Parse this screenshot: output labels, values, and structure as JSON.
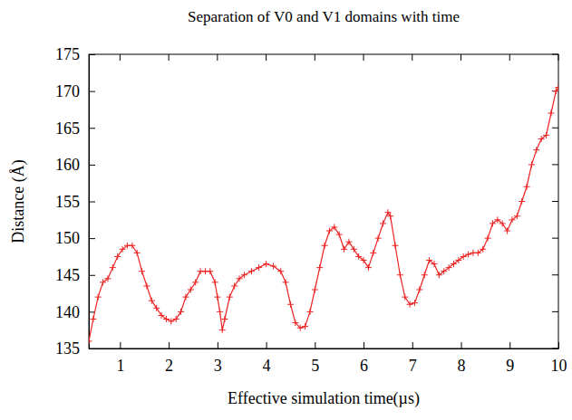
{
  "chart_data": {
    "type": "line",
    "title": "Separation of V0 and V1 domains with time",
    "x_label": "Effective simulation time(µs)",
    "y_label": "Distance (Å)",
    "xlim": [
      0.36,
      10
    ],
    "ylim": [
      135,
      175
    ],
    "xticks": [
      1,
      2,
      3,
      4,
      5,
      6,
      7,
      8,
      9,
      10
    ],
    "yticks": [
      135,
      140,
      145,
      150,
      155,
      160,
      165,
      170,
      175
    ],
    "grid": false,
    "series": [
      {
        "name": "distance",
        "color": "#ee2222",
        "marker": "plus",
        "line_style": "solid",
        "x": [
          0.36,
          0.45,
          0.55,
          0.65,
          0.75,
          0.85,
          0.95,
          1.05,
          1.15,
          1.25,
          1.35,
          1.45,
          1.55,
          1.65,
          1.75,
          1.85,
          1.95,
          2.05,
          2.15,
          2.25,
          2.35,
          2.45,
          2.55,
          2.65,
          2.75,
          2.85,
          2.95,
          3.0,
          3.05,
          3.1,
          3.15,
          3.25,
          3.35,
          3.45,
          3.55,
          3.7,
          3.85,
          4.0,
          4.15,
          4.3,
          4.4,
          4.5,
          4.6,
          4.7,
          4.8,
          4.9,
          5.0,
          5.1,
          5.2,
          5.3,
          5.4,
          5.5,
          5.6,
          5.7,
          5.8,
          5.9,
          6.0,
          6.1,
          6.2,
          6.3,
          6.4,
          6.5,
          6.55,
          6.65,
          6.75,
          6.85,
          6.95,
          7.05,
          7.15,
          7.25,
          7.35,
          7.45,
          7.55,
          7.65,
          7.75,
          7.85,
          7.95,
          8.05,
          8.15,
          8.25,
          8.35,
          8.45,
          8.55,
          8.65,
          8.75,
          8.85,
          8.95,
          9.05,
          9.15,
          9.25,
          9.35,
          9.45,
          9.55,
          9.65,
          9.75,
          9.85,
          9.95,
          10.0
        ],
        "values": [
          136,
          139,
          142,
          144,
          144.5,
          146,
          147.5,
          148.5,
          149,
          149,
          148,
          145.5,
          143.5,
          141.5,
          140.5,
          139.5,
          139,
          138.7,
          139,
          140,
          142,
          143,
          144,
          145.5,
          145.5,
          145.5,
          144,
          142,
          140,
          137.5,
          139,
          142,
          143.5,
          144.5,
          145,
          145.5,
          146,
          146.5,
          146.2,
          145.5,
          144,
          141,
          138.5,
          137.8,
          138,
          140,
          143,
          146,
          149,
          151,
          151.5,
          150.5,
          148.5,
          149.5,
          148.5,
          147.5,
          147,
          146,
          148,
          150,
          152,
          153.5,
          153,
          149,
          145,
          142,
          141,
          141.2,
          143,
          145,
          147,
          146.5,
          145,
          145.5,
          146,
          146.5,
          147,
          147.5,
          147.8,
          148,
          148,
          148.5,
          150,
          152,
          152.5,
          152,
          151,
          152.5,
          153,
          155,
          157,
          160,
          162,
          163.5,
          164,
          167,
          170,
          170.5
        ]
      }
    ]
  }
}
